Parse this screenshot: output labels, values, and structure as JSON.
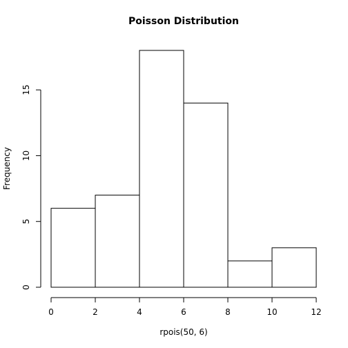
{
  "chart_data": {
    "type": "bar",
    "title": "Poisson Distribution",
    "xlabel": "rpois(50, 6)",
    "ylabel": "Frequency",
    "bins": [
      {
        "from": 0,
        "to": 2,
        "count": 6
      },
      {
        "from": 2,
        "to": 4,
        "count": 7
      },
      {
        "from": 4,
        "to": 6,
        "count": 18
      },
      {
        "from": 6,
        "to": 8,
        "count": 14
      },
      {
        "from": 8,
        "to": 10,
        "count": 2
      },
      {
        "from": 10,
        "to": 12,
        "count": 3
      }
    ],
    "xlim": [
      0,
      12
    ],
    "ylim": [
      0,
      18
    ],
    "xticks": [
      0,
      2,
      4,
      6,
      8,
      10,
      12
    ],
    "yticks": [
      0,
      5,
      10,
      15
    ],
    "grid": false
  }
}
